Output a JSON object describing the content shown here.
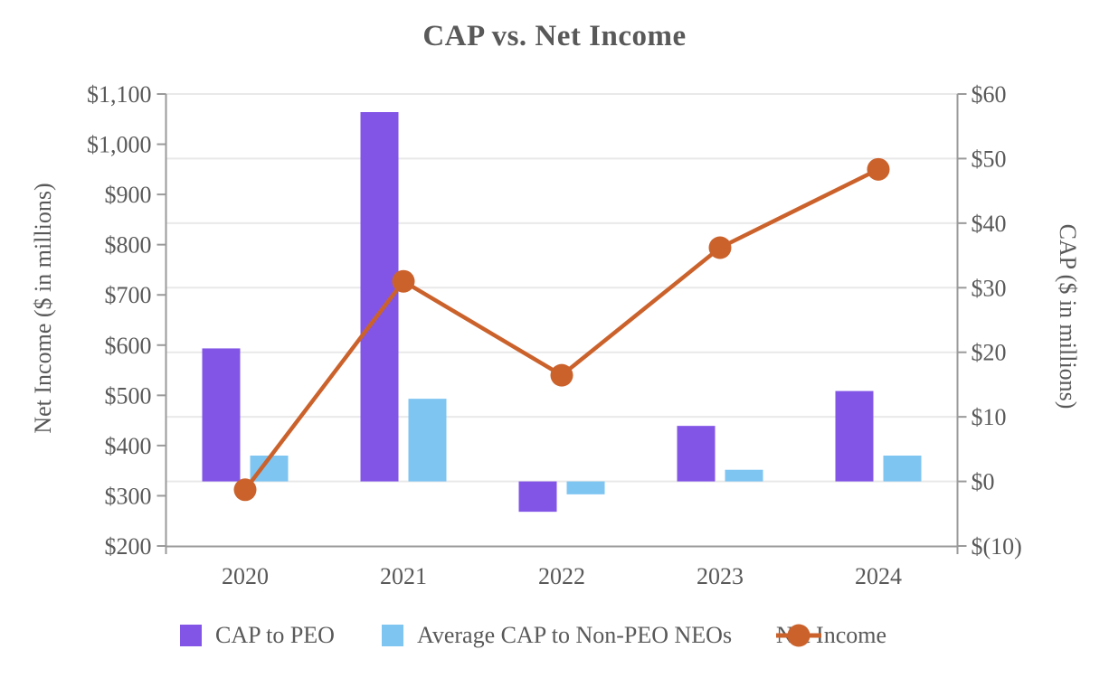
{
  "title": "CAP vs. Net Income",
  "chart_data": {
    "type": "bar",
    "subtype": "combo-bar-line-dual-axis",
    "title": "CAP vs. Net Income",
    "categories": [
      "2020",
      "2021",
      "2022",
      "2023",
      "2024"
    ],
    "series": [
      {
        "name": "CAP to PEO",
        "type": "bar",
        "axis": "right",
        "color": "#8355E6",
        "values": [
          20.6,
          57.2,
          -4.7,
          8.6,
          14.0
        ]
      },
      {
        "name": "Average CAP to Non-PEO NEOs",
        "type": "bar",
        "axis": "right",
        "color": "#7EC5F2",
        "values": [
          4.0,
          12.8,
          -2.0,
          1.8,
          4.0
        ]
      },
      {
        "name": "Net Income",
        "type": "line",
        "axis": "left",
        "color": "#CB622C",
        "values": [
          312,
          727,
          540,
          794,
          950
        ]
      }
    ],
    "left_axis": {
      "title": "Net Income ($ in millions)",
      "min": 200,
      "max": 1100,
      "step": 100,
      "ticks": [
        {
          "value": 200,
          "label": "$200"
        },
        {
          "value": 300,
          "label": "$300"
        },
        {
          "value": 400,
          "label": "$400"
        },
        {
          "value": 500,
          "label": "$500"
        },
        {
          "value": 600,
          "label": "$600"
        },
        {
          "value": 700,
          "label": "$700"
        },
        {
          "value": 800,
          "label": "$800"
        },
        {
          "value": 900,
          "label": "$900"
        },
        {
          "value": 1000,
          "label": "$1,000"
        },
        {
          "value": 1100,
          "label": "$1,100"
        }
      ]
    },
    "right_axis": {
      "title": "CAP ($ in millions)",
      "min": -10,
      "max": 60,
      "step": 10,
      "ticks": [
        {
          "value": -10,
          "label": "$(10)"
        },
        {
          "value": 0,
          "label": "$0"
        },
        {
          "value": 10,
          "label": "$10"
        },
        {
          "value": 20,
          "label": "$20"
        },
        {
          "value": 30,
          "label": "$30"
        },
        {
          "value": 40,
          "label": "$40"
        },
        {
          "value": 50,
          "label": "$50"
        },
        {
          "value": 60,
          "label": "$60"
        }
      ]
    },
    "grid": {
      "horizontal": true,
      "follows_axis": "right"
    },
    "legend_position": "bottom"
  },
  "colors": {
    "bar_peo": "#8355E6",
    "bar_non_peo": "#7EC5F2",
    "line_net_income": "#CB622C",
    "text": "#595959",
    "axis_line": "#9a9a9a",
    "gridline": "#e9e9e9"
  }
}
